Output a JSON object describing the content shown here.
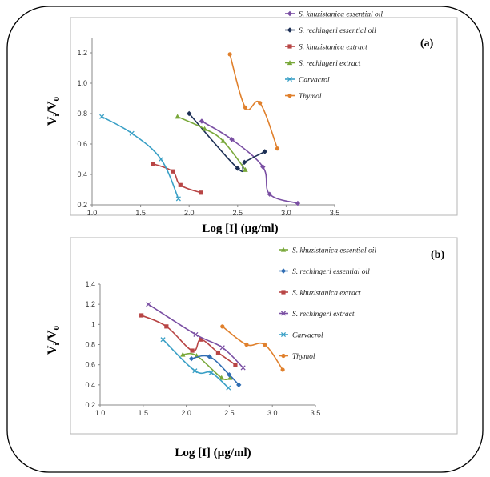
{
  "figure": {
    "xlabel_text": "Log [I] (µg/ml)",
    "ylabel_main": "V",
    "ylabel_sub1": "i",
    "ylabel_sep": "/V",
    "ylabel_sub2": "0"
  },
  "chart_data": [
    {
      "type": "line",
      "panel_label": "(a)",
      "xlabel": "Log [I] (µg/ml)",
      "ylabel": "Vi/V0",
      "xlim": [
        1.0,
        3.5
      ],
      "ylim": [
        0.2,
        1.3
      ],
      "x_ticks": [
        "1.0",
        "1.5",
        "2.0",
        "2.5",
        "3.0",
        "3.5"
      ],
      "y_ticks": [
        "0.2",
        "0.4",
        "0.6",
        "0.8",
        "1.0",
        "1.2"
      ],
      "legend_position": "right",
      "series": [
        {
          "name": "S. khuzistanica essential oil",
          "color": "#7a4fa3",
          "marker": "diamond",
          "x": [
            2.13,
            2.44,
            2.76,
            2.83,
            3.12
          ],
          "y": [
            0.75,
            0.63,
            0.45,
            0.27,
            0.21
          ]
        },
        {
          "name": "S. rechingeri essential oil",
          "color": "#1c2f55",
          "marker": "diamond",
          "x": [
            2.0,
            2.5,
            2.57,
            2.78
          ],
          "y": [
            0.8,
            0.44,
            0.48,
            0.55
          ]
        },
        {
          "name": "S. khuzistanica  extract",
          "color": "#b84545",
          "marker": "square",
          "x": [
            1.63,
            1.83,
            1.91,
            2.12
          ],
          "y": [
            0.47,
            0.42,
            0.33,
            0.28
          ]
        },
        {
          "name": "S. rechingeri extract",
          "color": "#79a83a",
          "marker": "triangle",
          "x": [
            1.88,
            2.16,
            2.35,
            2.58
          ],
          "y": [
            0.78,
            0.7,
            0.62,
            0.43
          ]
        },
        {
          "name": "Carvacrol",
          "color": "#3aa0c6",
          "marker": "x",
          "x": [
            1.1,
            1.41,
            1.71,
            1.89
          ],
          "y": [
            0.78,
            0.67,
            0.5,
            0.24
          ]
        },
        {
          "name": "Thymol",
          "color": "#e0802c",
          "marker": "circle",
          "x": [
            2.42,
            2.58,
            2.73,
            2.91
          ],
          "y": [
            1.19,
            0.84,
            0.87,
            0.57
          ]
        }
      ]
    },
    {
      "type": "line",
      "panel_label": "(b)",
      "xlabel": "Log [I] (µg/ml)",
      "ylabel": "Vi/V0",
      "xlim": [
        1.0,
        3.5
      ],
      "ylim": [
        0.2,
        1.4
      ],
      "x_ticks": [
        "1.0",
        "1.5",
        "2.0",
        "2.5",
        "3.0",
        "3.5"
      ],
      "y_ticks": [
        "0.2",
        "0.4",
        "0.6",
        "0.8",
        "1",
        "1.2",
        "1.4"
      ],
      "legend_position": "right",
      "series": [
        {
          "name": "S. khuzistanica essential oil",
          "color": "#79a83a",
          "marker": "triangle",
          "x": [
            1.96,
            2.12,
            2.41,
            2.51
          ],
          "y": [
            0.7,
            0.69,
            0.47,
            0.47
          ]
        },
        {
          "name": "S. rechingeri essential oil",
          "color": "#2f6db3",
          "marker": "diamond",
          "x": [
            2.06,
            2.27,
            2.5,
            2.61
          ],
          "y": [
            0.66,
            0.68,
            0.5,
            0.4
          ]
        },
        {
          "name": "S. khuzistanica extract",
          "color": "#b84545",
          "marker": "square",
          "x": [
            1.48,
            1.77,
            2.07,
            2.17,
            2.37,
            2.57
          ],
          "y": [
            1.09,
            0.98,
            0.74,
            0.85,
            0.72,
            0.6
          ]
        },
        {
          "name": "S. rechingeri extract",
          "color": "#7a4fa3",
          "marker": "x",
          "x": [
            1.56,
            2.11,
            2.42,
            2.66
          ],
          "y": [
            1.2,
            0.9,
            0.77,
            0.57
          ]
        },
        {
          "name": "Carvacrol",
          "color": "#3aa0c6",
          "marker": "x",
          "x": [
            1.73,
            2.1,
            2.29,
            2.49
          ],
          "y": [
            0.85,
            0.54,
            0.52,
            0.37
          ]
        },
        {
          "name": "Thymol",
          "color": "#e0802c",
          "marker": "circle",
          "x": [
            2.42,
            2.7,
            2.91,
            3.12
          ],
          "y": [
            0.98,
            0.8,
            0.8,
            0.55
          ]
        }
      ]
    }
  ]
}
